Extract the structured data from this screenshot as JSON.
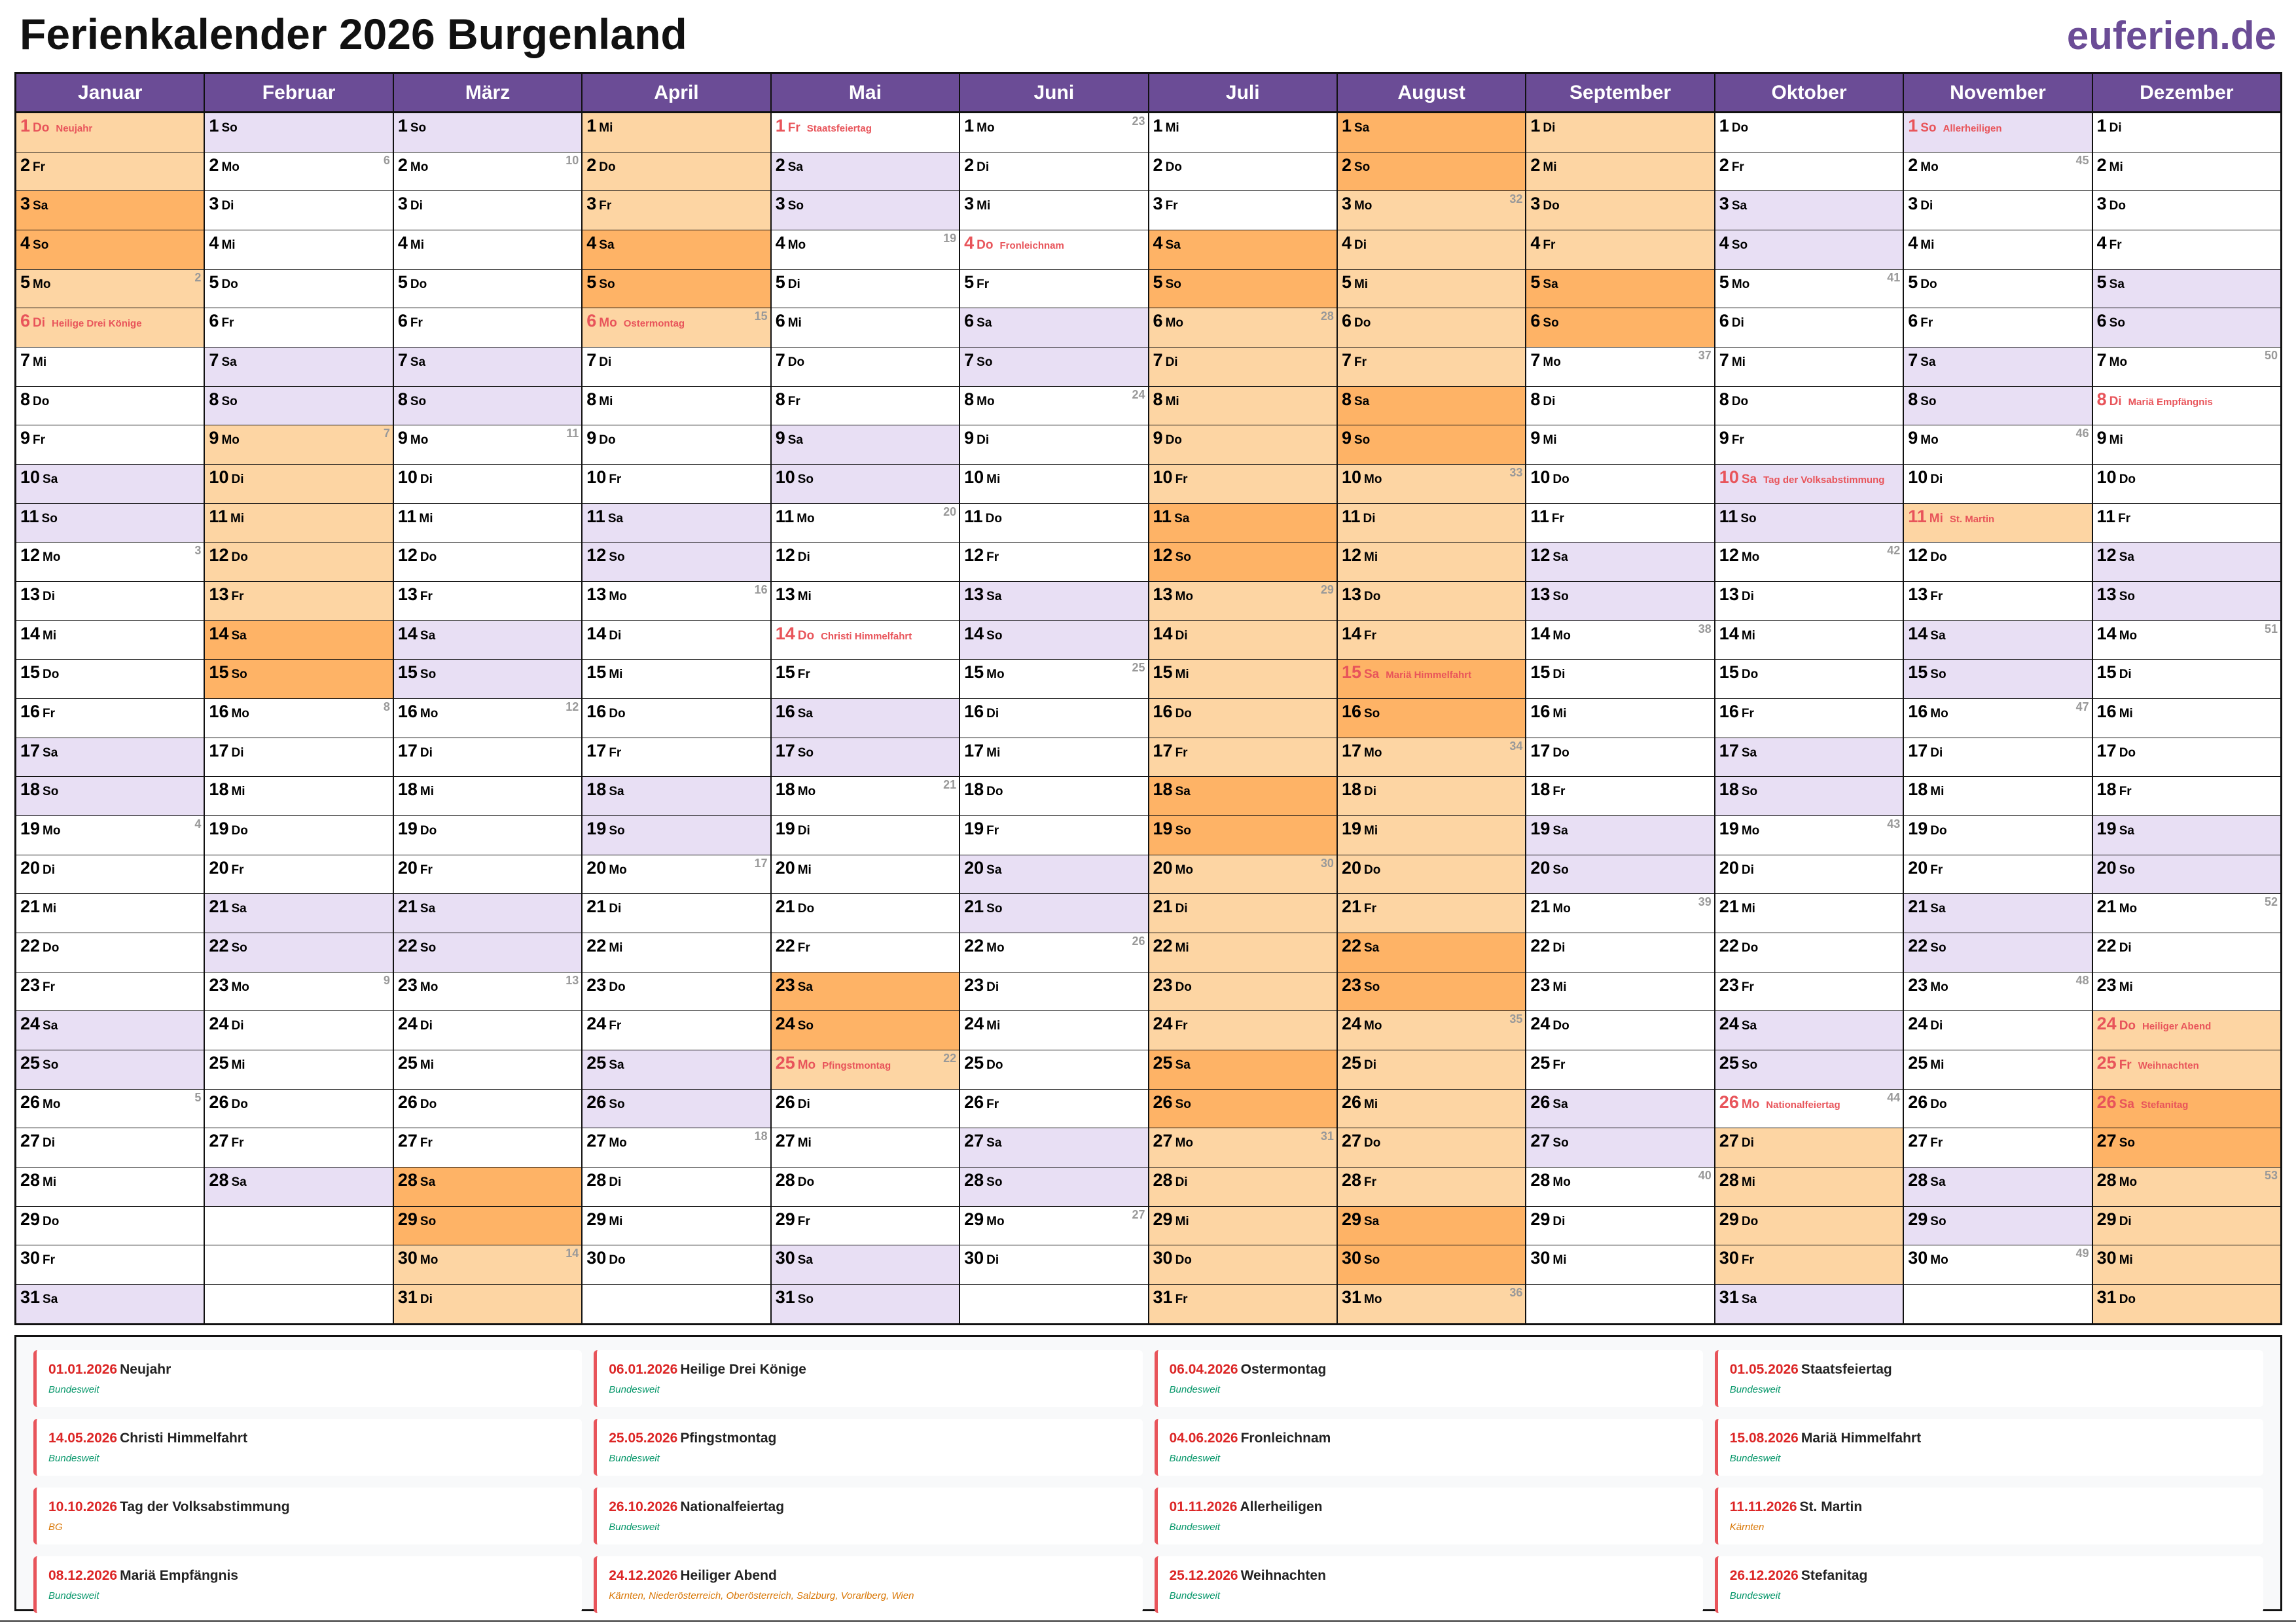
{
  "header": {
    "title": "Ferienkalender 2026 Burgenland",
    "logo": "euferien.de"
  },
  "colors": {
    "header": "#6b4c96",
    "weekend": "#e8dff4",
    "vacation": "#fdd5a3",
    "vacation_weekend": "#feb366",
    "holiday_text": "#e8545a",
    "week_number": "#999999",
    "region_nationwide": "#059669",
    "region_regional": "#d97706"
  },
  "weekdays": [
    "Mo",
    "Di",
    "Mi",
    "Do",
    "Fr",
    "Sa",
    "So"
  ],
  "months": [
    {
      "name": "Januar",
      "days": 31,
      "first_weekday": 3,
      "vacation": [
        1,
        2,
        3,
        4,
        5,
        6
      ],
      "week_numbers": {
        "5": "2",
        "12": "3",
        "19": "4",
        "26": "5"
      },
      "holidays": {
        "1": "Neujahr",
        "6": "Heilige Drei Könige"
      }
    },
    {
      "name": "Februar",
      "days": 28,
      "first_weekday": 6,
      "vacation": [
        9,
        10,
        11,
        12,
        13,
        14,
        15
      ],
      "week_numbers": {
        "2": "6",
        "9": "7",
        "16": "8",
        "23": "9"
      },
      "holidays": {}
    },
    {
      "name": "März",
      "days": 31,
      "first_weekday": 6,
      "vacation": [
        28,
        29,
        30,
        31
      ],
      "week_numbers": {
        "2": "10",
        "9": "11",
        "16": "12",
        "23": "13",
        "30": "14"
      },
      "holidays": {}
    },
    {
      "name": "April",
      "days": 30,
      "first_weekday": 2,
      "vacation": [
        1,
        2,
        3,
        4,
        5,
        6
      ],
      "week_numbers": {
        "6": "15",
        "13": "16",
        "20": "17",
        "27": "18"
      },
      "holidays": {
        "6": "Ostermontag"
      }
    },
    {
      "name": "Mai",
      "days": 31,
      "first_weekday": 4,
      "vacation": [
        23,
        24,
        25
      ],
      "week_numbers": {
        "4": "19",
        "11": "20",
        "18": "21",
        "25": "22"
      },
      "holidays": {
        "1": "Staatsfeiertag",
        "14": "Christi Himmelfahrt",
        "25": "Pfingstmontag"
      }
    },
    {
      "name": "Juni",
      "days": 30,
      "first_weekday": 0,
      "vacation": [],
      "week_numbers": {
        "1": "23",
        "8": "24",
        "15": "25",
        "22": "26",
        "29": "27"
      },
      "holidays": {
        "4": "Fronleichnam"
      }
    },
    {
      "name": "Juli",
      "days": 31,
      "first_weekday": 2,
      "vacation": [
        4,
        5,
        6,
        7,
        8,
        9,
        10,
        11,
        12,
        13,
        14,
        15,
        16,
        17,
        18,
        19,
        20,
        21,
        22,
        23,
        24,
        25,
        26,
        27,
        28,
        29,
        30,
        31
      ],
      "week_numbers": {
        "6": "28",
        "13": "29",
        "20": "30",
        "27": "31"
      },
      "holidays": {}
    },
    {
      "name": "August",
      "days": 31,
      "first_weekday": 5,
      "vacation": [
        1,
        2,
        3,
        4,
        5,
        6,
        7,
        8,
        9,
        10,
        11,
        12,
        13,
        14,
        15,
        16,
        17,
        18,
        19,
        20,
        21,
        22,
        23,
        24,
        25,
        26,
        27,
        28,
        29,
        30,
        31
      ],
      "week_numbers": {
        "3": "32",
        "10": "33",
        "17": "34",
        "24": "35",
        "31": "36"
      },
      "holidays": {
        "15": "Mariä Himmelfahrt"
      }
    },
    {
      "name": "September",
      "days": 30,
      "first_weekday": 1,
      "vacation": [
        1,
        2,
        3,
        4,
        5,
        6
      ],
      "week_numbers": {
        "7": "37",
        "14": "38",
        "21": "39",
        "28": "40"
      },
      "holidays": {}
    },
    {
      "name": "Oktober",
      "days": 31,
      "first_weekday": 3,
      "vacation": [
        27,
        28,
        29,
        30
      ],
      "week_numbers": {
        "5": "41",
        "12": "42",
        "19": "43",
        "26": "44"
      },
      "holidays": {
        "10": "Tag der Volksabstimmung",
        "26": "Nationalfeiertag"
      }
    },
    {
      "name": "November",
      "days": 30,
      "first_weekday": 6,
      "vacation": [
        11
      ],
      "week_numbers": {
        "2": "45",
        "9": "46",
        "16": "47",
        "23": "48",
        "30": "49"
      },
      "holidays": {
        "1": "Allerheiligen",
        "11": "St. Martin"
      }
    },
    {
      "name": "Dezember",
      "days": 31,
      "first_weekday": 1,
      "vacation": [
        24,
        25,
        26,
        27,
        28,
        29,
        30,
        31
      ],
      "week_numbers": {
        "7": "50",
        "14": "51",
        "21": "52",
        "28": "53"
      },
      "holidays": {
        "8": "Mariä Empfängnis",
        "24": "Heiliger Abend",
        "25": "Weihnachten",
        "26": "Stefanitag"
      }
    }
  ],
  "legend": [
    {
      "date": "01.01.2026",
      "name": "Neujahr",
      "region": "Bundesweit",
      "nationwide": true
    },
    {
      "date": "06.01.2026",
      "name": "Heilige Drei Könige",
      "region": "Bundesweit",
      "nationwide": true
    },
    {
      "date": "06.04.2026",
      "name": "Ostermontag",
      "region": "Bundesweit",
      "nationwide": true
    },
    {
      "date": "01.05.2026",
      "name": "Staatsfeiertag",
      "region": "Bundesweit",
      "nationwide": true
    },
    {
      "date": "14.05.2026",
      "name": "Christi Himmelfahrt",
      "region": "Bundesweit",
      "nationwide": true
    },
    {
      "date": "25.05.2026",
      "name": "Pfingstmontag",
      "region": "Bundesweit",
      "nationwide": true
    },
    {
      "date": "04.06.2026",
      "name": "Fronleichnam",
      "region": "Bundesweit",
      "nationwide": true
    },
    {
      "date": "15.08.2026",
      "name": "Mariä Himmelfahrt",
      "region": "Bundesweit",
      "nationwide": true
    },
    {
      "date": "10.10.2026",
      "name": "Tag der Volksabstimmung",
      "region": "BG",
      "nationwide": false
    },
    {
      "date": "26.10.2026",
      "name": "Nationalfeiertag",
      "region": "Bundesweit",
      "nationwide": true
    },
    {
      "date": "01.11.2026",
      "name": "Allerheiligen",
      "region": "Bundesweit",
      "nationwide": true
    },
    {
      "date": "11.11.2026",
      "name": "St. Martin",
      "region": "Kärnten",
      "nationwide": false
    },
    {
      "date": "08.12.2026",
      "name": "Mariä Empfängnis",
      "region": "Bundesweit",
      "nationwide": true
    },
    {
      "date": "24.12.2026",
      "name": "Heiliger Abend",
      "region": "Kärnten, Niederösterreich, Oberösterreich, Salzburg, Vorarlberg, Wien",
      "nationwide": false
    },
    {
      "date": "25.12.2026",
      "name": "Weihnachten",
      "region": "Bundesweit",
      "nationwide": true
    },
    {
      "date": "26.12.2026",
      "name": "Stefanitag",
      "region": "Bundesweit",
      "nationwide": true
    }
  ]
}
